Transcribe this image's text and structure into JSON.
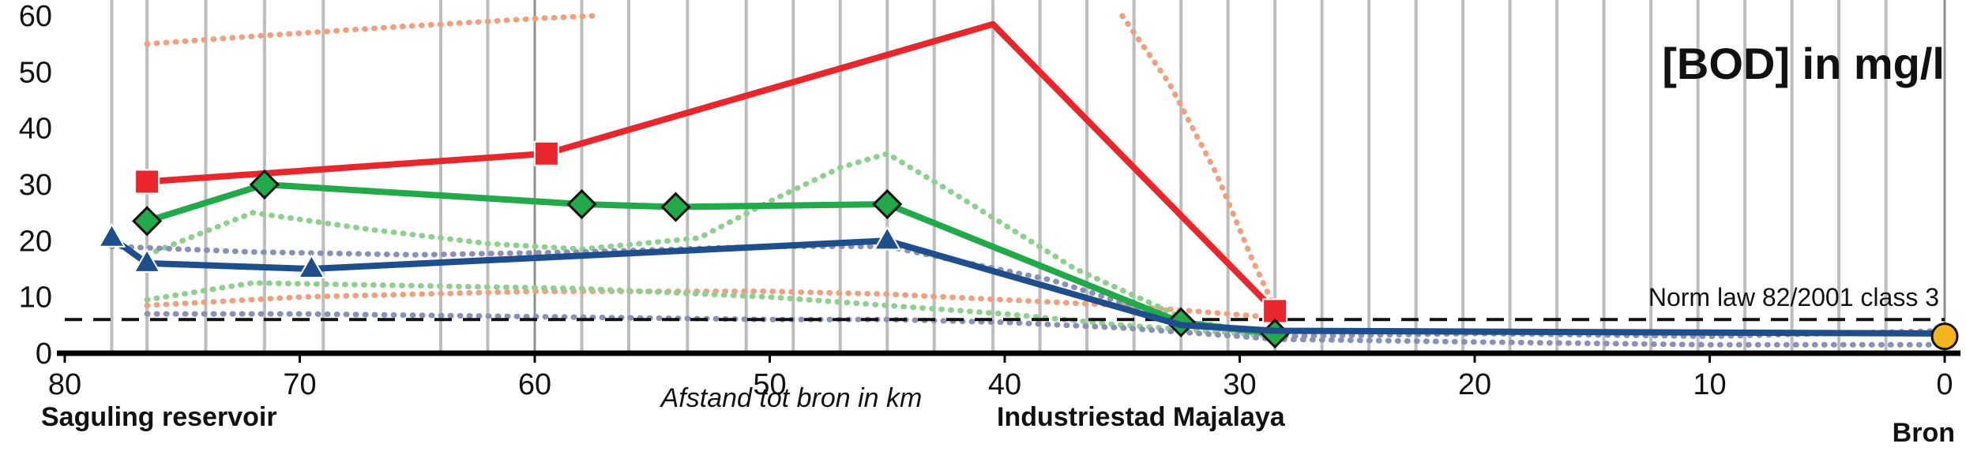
{
  "chart_data": {
    "type": "line",
    "title": "[BOD] in mg/l",
    "xlabel": "Afstand tot bron in km",
    "ylabel": "",
    "xlim": [
      80,
      0
    ],
    "ylim": [
      0,
      60
    ],
    "x_reversed": true,
    "x_ticks": [
      80,
      70,
      60,
      50,
      40,
      30,
      20,
      10,
      0
    ],
    "y_ticks": [
      0,
      10,
      20,
      30,
      40,
      50,
      60
    ],
    "vertical_gridlines_km": [
      78,
      76.5,
      74,
      71.5,
      69,
      64,
      62,
      60,
      58,
      56,
      53.5,
      51,
      49,
      47,
      45,
      43,
      40.5,
      38.5,
      36.5,
      34.5,
      32.5,
      30.5,
      28.5,
      26.5,
      24.5,
      22.5,
      20.5,
      18.5,
      16.5,
      14.5,
      12.5,
      10.5,
      8.5,
      6.5,
      4.5,
      2.5,
      0
    ],
    "grid": "vertical",
    "norm_line": {
      "label": "Norm law 82/2001 class 3",
      "value": 6,
      "color": "#111111"
    },
    "places": [
      {
        "label": "Saguling reservoir"
      },
      {
        "label": "Industriestad Majalaya"
      },
      {
        "label": "Bron"
      }
    ],
    "series": [
      {
        "color": "#e8262b",
        "marker": "square",
        "x": [
          76.5,
          59.5,
          40.5,
          28.5
        ],
        "y": [
          30.5,
          35.5,
          58.5,
          7.5
        ],
        "markers_at": [
          0,
          1,
          3
        ]
      },
      {
        "color": "#22a94a",
        "marker": "diamond",
        "x": [
          76.5,
          71.5,
          58,
          54,
          45,
          32.5,
          28.5
        ],
        "y": [
          23.5,
          30,
          26.5,
          26,
          26.5,
          5.5,
          3.5
        ]
      },
      {
        "color": "#1f4e8c",
        "marker": "triangle",
        "x": [
          78,
          76.5,
          69.5,
          45,
          32.5,
          28.5,
          0
        ],
        "y": [
          20.5,
          16,
          15,
          20,
          5,
          4,
          3.5
        ],
        "markers_at": [
          0,
          1,
          2,
          3
        ]
      }
    ],
    "dotted_bands": [
      {
        "color": "#f0a07e",
        "x": [
          76.5,
          71.5,
          66,
          60,
          57.5
        ],
        "y": [
          55,
          56.5,
          58,
          59.5,
          60
        ]
      },
      {
        "color": "#f0a07e",
        "x": [
          35,
          33,
          31,
          29.5,
          28.5
        ],
        "y": [
          60,
          48,
          32,
          17,
          8
        ]
      },
      {
        "color": "#f0a07e",
        "x": [
          76.5,
          70,
          60,
          50,
          45,
          40,
          35,
          32,
          29
        ],
        "y": [
          8.5,
          10,
          11,
          11,
          10.5,
          9.5,
          8.5,
          7.5,
          6.5
        ]
      },
      {
        "color": "#8fd08f",
        "x": [
          76.5,
          72,
          67,
          62,
          58,
          53,
          50,
          47,
          45,
          42,
          37,
          32,
          28.5
        ],
        "y": [
          17.5,
          25,
          22,
          19.5,
          18.5,
          20.5,
          27,
          33,
          35.5,
          28,
          15,
          5.5,
          3.5
        ]
      },
      {
        "color": "#8fd08f",
        "x": [
          76.5,
          72,
          65,
          58,
          50,
          45,
          40,
          35,
          30,
          28.5
        ],
        "y": [
          9.5,
          12.5,
          12,
          11.5,
          10,
          8.5,
          7,
          5,
          3.5,
          3
        ]
      },
      {
        "color": "#8a90b8",
        "x": [
          78,
          72,
          65,
          58,
          50,
          45,
          38,
          32,
          28.5,
          20,
          10,
          0
        ],
        "y": [
          19,
          18,
          17.5,
          18,
          19,
          19,
          13,
          5,
          3,
          3.5,
          3,
          4
        ]
      },
      {
        "color": "#8a90b8",
        "x": [
          76.5,
          70,
          60,
          50,
          45,
          40,
          35,
          30,
          28.5,
          20,
          10,
          0
        ],
        "y": [
          7,
          7,
          6.5,
          6,
          6,
          5.5,
          4.5,
          3,
          2.5,
          2,
          1.5,
          1.5
        ]
      }
    ],
    "endpoint_marker": {
      "x": 0,
      "y": 3,
      "color": "#f2b51c"
    }
  }
}
